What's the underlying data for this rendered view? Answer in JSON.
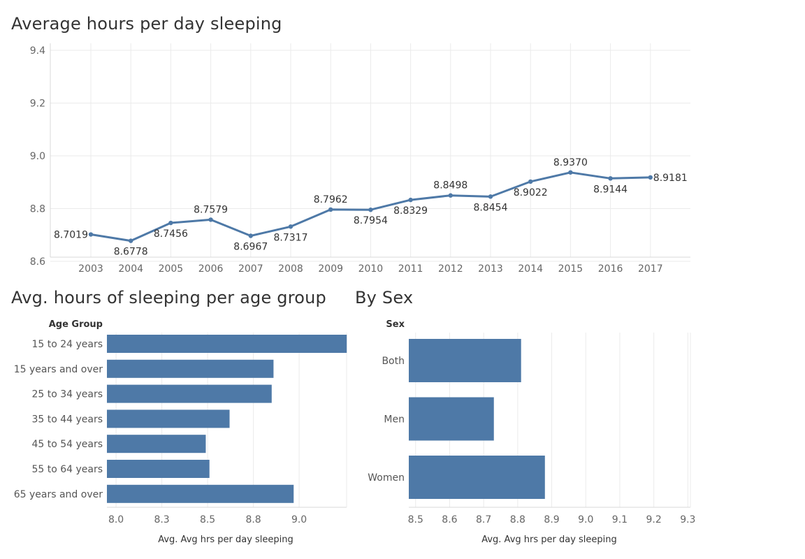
{
  "accent_color": "#4e79a7",
  "chart_data": [
    {
      "type": "line",
      "title": "Average hours per day sleeping",
      "x": [
        "2003",
        "2004",
        "2005",
        "2006",
        "2007",
        "2008",
        "2009",
        "2010",
        "2011",
        "2012",
        "2013",
        "2014",
        "2015",
        "2016",
        "2017"
      ],
      "series": [
        {
          "values": [
            8.7019,
            8.6778,
            8.7456,
            8.7579,
            8.6967,
            8.7317,
            8.7962,
            8.7954,
            8.8329,
            8.8498,
            8.8454,
            8.9022,
            8.937,
            8.9144,
            8.9181
          ]
        }
      ],
      "data_labels": [
        "8.7019",
        "8.6778",
        "8.7456",
        "8.7579",
        "8.6967",
        "8.7317",
        "8.7962",
        "8.7954",
        "8.8329",
        "8.8498",
        "8.8454",
        "8.9022",
        "8.9370",
        "8.9144",
        "8.9181"
      ],
      "ylim": [
        8.6,
        9.4
      ],
      "yticks": [
        "9.4",
        "9.2",
        "9.0",
        "8.8",
        "8.6"
      ],
      "ytick_values": [
        9.4,
        9.2,
        9.0,
        8.8,
        8.6
      ],
      "grid": true
    },
    {
      "type": "bar",
      "title": "Avg. hours of sleeping per age group",
      "category_header": "Age Group",
      "categories": [
        "15 to 24 years",
        "15 years and over",
        "25 to 34 years",
        "35 to 44 years",
        "45 to 54 years",
        "55 to 64 years",
        "65 years and over"
      ],
      "values": [
        9.26,
        8.86,
        8.85,
        8.62,
        8.49,
        8.51,
        8.97
      ],
      "xlabel": "Avg. Avg hrs per day sleeping",
      "xlim": [
        7.95,
        9.26
      ],
      "xticks": [
        "8.0",
        "8.3",
        "8.5",
        "8.8",
        "9.0"
      ],
      "xtick_values": [
        8.0,
        8.25,
        8.5,
        8.75,
        9.0
      ],
      "grid": true
    },
    {
      "type": "bar",
      "title": "By Sex",
      "category_header": "Sex",
      "categories": [
        "Both",
        "Men",
        "Women"
      ],
      "values": [
        8.81,
        8.73,
        8.88
      ],
      "xlabel": "Avg. Avg hrs per day sleeping",
      "xlim": [
        8.48,
        9.33
      ],
      "xticks": [
        "8.5",
        "8.6",
        "8.7",
        "8.8",
        "8.9",
        "9.0",
        "9.1",
        "9.2",
        "9.3"
      ],
      "xtick_values": [
        8.5,
        8.6,
        8.7,
        8.8,
        8.9,
        9.0,
        9.1,
        9.2,
        9.3
      ],
      "grid": true
    }
  ]
}
